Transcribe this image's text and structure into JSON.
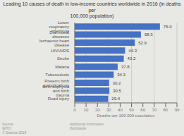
{
  "chart_data": {
    "type": "bar",
    "orientation": "horizontal",
    "title": "Leading 10 causes of death in low-income countries worldwide in 2016 (in deaths per\n100,000 population)",
    "categories": [
      "Road injury",
      "Birth asphyxia and birth trauma",
      "Preterm birth complications",
      "Tuberculosis",
      "Malaria",
      "Stroke",
      "HIV/AIDS",
      "Ischaemic heart disease",
      "Diarrhoeal diseases",
      "Lower respiratory infections"
    ],
    "values": [
      29.4,
      30.5,
      30.2,
      34.3,
      37.8,
      43.2,
      44.3,
      52.9,
      58.3,
      75.0
    ],
    "value_labels": [
      "29.4",
      "30.5",
      "30.2",
      "34.3",
      "37.8",
      "43.2",
      "44.3",
      "52.9",
      "58.3",
      "75.0"
    ],
    "data_labels": true,
    "color": "#4472c4",
    "xlabel": "Deaths per 100,000 population",
    "xlim": [
      0,
      90
    ],
    "xticks": [
      0,
      10,
      20,
      30,
      40,
      50,
      60,
      70,
      80,
      90
    ],
    "grid": true,
    "annotations": [
      "Source\nWHO\n© Statista 2019",
      "Additional Information\nWorldwide"
    ]
  }
}
